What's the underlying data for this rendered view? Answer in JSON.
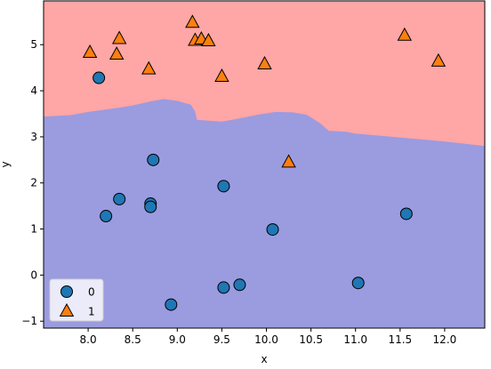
{
  "chart_data": {
    "type": "scatter",
    "title": "",
    "xlabel": "x",
    "ylabel": "y",
    "xlim": [
      7.5,
      12.45
    ],
    "ylim": [
      -1.15,
      5.95
    ],
    "x_ticks": [
      8.0,
      8.5,
      9.0,
      9.5,
      10.0,
      10.5,
      11.0,
      11.5,
      12.0
    ],
    "x_tick_labels": [
      "8.0",
      "8.5",
      "9.0",
      "9.5",
      "10.0",
      "10.5",
      "11.0",
      "11.5",
      "12.0"
    ],
    "y_ticks": [
      -1,
      0,
      1,
      2,
      3,
      4,
      5
    ],
    "y_tick_labels": [
      "−1",
      "0",
      "1",
      "2",
      "3",
      "4",
      "5"
    ],
    "grid": false,
    "legend_position": "lower-left",
    "decision_regions": {
      "colors": {
        "class_0": "#9b9be0",
        "class_1": "#ffa6a6"
      },
      "boundary": [
        [
          7.5,
          3.44
        ],
        [
          7.8,
          3.47
        ],
        [
          8.0,
          3.54
        ],
        [
          8.3,
          3.62
        ],
        [
          8.5,
          3.68
        ],
        [
          8.7,
          3.77
        ],
        [
          8.85,
          3.82
        ],
        [
          9.0,
          3.78
        ],
        [
          9.15,
          3.7
        ],
        [
          9.2,
          3.55
        ],
        [
          9.22,
          3.37
        ],
        [
          9.35,
          3.35
        ],
        [
          9.5,
          3.33
        ],
        [
          9.7,
          3.4
        ],
        [
          9.9,
          3.48
        ],
        [
          10.1,
          3.54
        ],
        [
          10.3,
          3.53
        ],
        [
          10.45,
          3.48
        ],
        [
          10.6,
          3.3
        ],
        [
          10.7,
          3.13
        ],
        [
          10.9,
          3.11
        ],
        [
          11.0,
          3.07
        ],
        [
          11.3,
          3.02
        ],
        [
          11.6,
          2.97
        ],
        [
          12.0,
          2.9
        ],
        [
          12.45,
          2.8
        ]
      ]
    },
    "series": [
      {
        "name": "0",
        "marker": "circle",
        "color": "#1f77b4",
        "points": [
          [
            8.12,
            4.28
          ],
          [
            8.73,
            2.5
          ],
          [
            8.35,
            1.65
          ],
          [
            8.7,
            1.55
          ],
          [
            8.7,
            1.48
          ],
          [
            8.2,
            1.28
          ],
          [
            9.52,
            1.93
          ],
          [
            10.07,
            0.99
          ],
          [
            11.57,
            1.33
          ],
          [
            9.52,
            -0.27
          ],
          [
            9.7,
            -0.21
          ],
          [
            11.03,
            -0.17
          ],
          [
            8.93,
            -0.64
          ]
        ]
      },
      {
        "name": "1",
        "marker": "triangle",
        "color": "#ff7f0e",
        "points": [
          [
            8.02,
            4.83
          ],
          [
            8.32,
            4.79
          ],
          [
            8.35,
            5.13
          ],
          [
            8.68,
            4.47
          ],
          [
            9.17,
            5.48
          ],
          [
            9.2,
            5.09
          ],
          [
            9.27,
            5.12
          ],
          [
            9.35,
            5.08
          ],
          [
            9.5,
            4.31
          ],
          [
            9.98,
            4.58
          ],
          [
            11.55,
            5.2
          ],
          [
            11.93,
            4.64
          ],
          [
            10.25,
            2.45
          ]
        ]
      }
    ]
  }
}
